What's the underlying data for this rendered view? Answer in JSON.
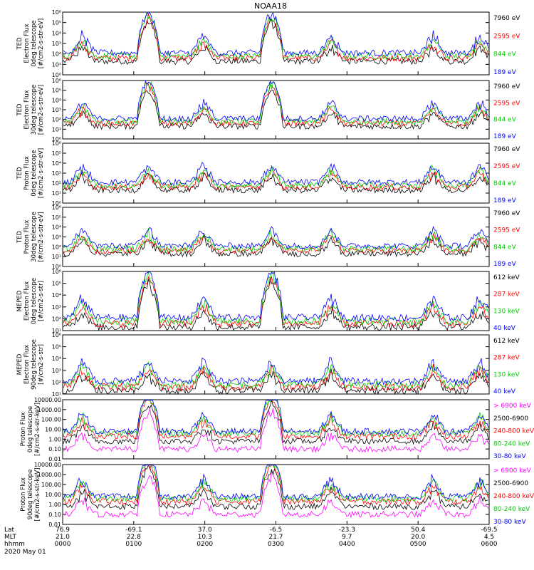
{
  "title": "NOAA18",
  "colors": {
    "blue": "#0000ff",
    "red": "#ff0000",
    "green": "#00cc00",
    "black": "#000000",
    "magenta": "#ff00ff"
  },
  "chart_data": [
    {
      "type": "line",
      "ylabel": [
        "TED",
        "Electron Flux",
        "0deg telescope",
        "[#/cm2-s-str-eV]"
      ],
      "yscale": "log",
      "ylim": [
        1,
        1000000
      ],
      "y_ticks": [
        "10^0",
        "10^1",
        "10^2",
        "10^3",
        "10^4",
        "10^5",
        "10^6"
      ],
      "series": [
        {
          "name": "7960 eV",
          "color": "#000000"
        },
        {
          "name": "2595 eV",
          "color": "#ff0000"
        },
        {
          "name": "844 eV",
          "color": "#00cc00"
        },
        {
          "name": "189 eV",
          "color": "#0000ff"
        }
      ]
    },
    {
      "type": "line",
      "ylabel": [
        "TED",
        "Electron Flux",
        "30deg telescope",
        "[#/cm2-s-str-eV]"
      ],
      "yscale": "log",
      "ylim": [
        1,
        1000000
      ],
      "y_ticks": [
        "10^0",
        "10^1",
        "10^2",
        "10^3",
        "10^4",
        "10^5",
        "10^6"
      ],
      "series": [
        {
          "name": "7960 eV",
          "color": "#000000"
        },
        {
          "name": "2595 eV",
          "color": "#ff0000"
        },
        {
          "name": "844 eV",
          "color": "#00cc00"
        },
        {
          "name": "189 eV",
          "color": "#0000ff"
        }
      ]
    },
    {
      "type": "line",
      "ylabel": [
        "TED",
        "Proton Flux",
        "0deg telescope",
        "[#/cm2-s-str-eV]"
      ],
      "yscale": "log",
      "ylim": [
        1,
        1000000
      ],
      "y_ticks": [
        "10^0",
        "10^1",
        "10^2",
        "10^3",
        "10^4",
        "10^5",
        "10^6"
      ],
      "series": [
        {
          "name": "7960 eV",
          "color": "#000000"
        },
        {
          "name": "2595 eV",
          "color": "#ff0000"
        },
        {
          "name": "844 eV",
          "color": "#00cc00"
        },
        {
          "name": "189 eV",
          "color": "#0000ff"
        }
      ]
    },
    {
      "type": "line",
      "ylabel": [
        "TED",
        "Proton Flux",
        "30deg telescope",
        "[#/cm2-s-str-eV]"
      ],
      "yscale": "log",
      "ylim": [
        1,
        1000000
      ],
      "y_ticks": [
        "10^0",
        "10^1",
        "10^2",
        "10^3",
        "10^4",
        "10^5",
        "10^6"
      ],
      "series": [
        {
          "name": "7960 eV",
          "color": "#000000"
        },
        {
          "name": "2595 eV",
          "color": "#ff0000"
        },
        {
          "name": "844 eV",
          "color": "#00cc00"
        },
        {
          "name": "189 eV",
          "color": "#0000ff"
        }
      ]
    },
    {
      "type": "line",
      "ylabel": [
        "MEPED",
        "Electron Flux",
        "0deg telescope",
        "[#/cm2-s-str]"
      ],
      "yscale": "log",
      "ylim": [
        10,
        1000000
      ],
      "y_ticks": [
        "10^1",
        "10^2",
        "10^3",
        "10^4",
        "10^5",
        "10^6"
      ],
      "series": [
        {
          "name": "612 keV",
          "color": "#000000"
        },
        {
          "name": "287 keV",
          "color": "#ff0000"
        },
        {
          "name": "130 keV",
          "color": "#00cc00"
        },
        {
          "name": "40 keV",
          "color": "#0000ff"
        }
      ]
    },
    {
      "type": "line",
      "ylabel": [
        "MEPED",
        "Electron Flux",
        "90deg telescope",
        "[#/cm2-s-str]"
      ],
      "yscale": "log",
      "ylim": [
        10,
        1000000
      ],
      "y_ticks": [
        "10^1",
        "10^2",
        "10^3",
        "10^4",
        "10^5",
        "10^6"
      ],
      "series": [
        {
          "name": "612 keV",
          "color": "#000000"
        },
        {
          "name": "287 keV",
          "color": "#ff0000"
        },
        {
          "name": "130 keV",
          "color": "#00cc00"
        },
        {
          "name": "40 keV",
          "color": "#0000ff"
        }
      ]
    },
    {
      "type": "line",
      "ylabel": [
        "Proton Flux",
        "0deg telescope",
        "[#/cm2-s-str-keV]"
      ],
      "yscale": "log",
      "ylim": [
        0.01,
        10000
      ],
      "y_ticks": [
        "10000.00",
        "1000.00",
        "100.00",
        "10.00",
        "1.00",
        "0.10",
        "0.01"
      ],
      "series": [
        {
          "name": "> 6900 keV",
          "color": "#ff00ff"
        },
        {
          "name": "2500-6900",
          "color": "#000000"
        },
        {
          "name": "240-800 keV",
          "color": "#ff0000"
        },
        {
          "name": "80-240 keV",
          "color": "#00cc00"
        },
        {
          "name": "30-80 keV",
          "color": "#0000ff"
        }
      ]
    },
    {
      "type": "line",
      "ylabel": [
        "Proton Flux",
        "90deg telescope",
        "[#/cm2-s-str-keV]"
      ],
      "yscale": "log",
      "ylim": [
        0.01,
        10000
      ],
      "y_ticks": [
        "10000.00",
        "1000.00",
        "100.00",
        "10.00",
        "1.00",
        "0.10",
        "0.01"
      ],
      "series": [
        {
          "name": "> 6900 keV",
          "color": "#ff00ff"
        },
        {
          "name": "2500-6900",
          "color": "#000000"
        },
        {
          "name": "240-800 keV",
          "color": "#ff0000"
        },
        {
          "name": "80-240 keV",
          "color": "#00cc00"
        },
        {
          "name": "30-80 keV",
          "color": "#0000ff"
        }
      ]
    }
  ],
  "x_axis": {
    "row_labels": [
      "Lat",
      "MLT",
      "hhmm",
      "2020 May 01"
    ],
    "ticks": [
      {
        "lat": "76.9",
        "mlt": "21.0",
        "hhmm": "0000"
      },
      {
        "lat": "-69.1",
        "mlt": "22.8",
        "hhmm": "0100"
      },
      {
        "lat": "37.0",
        "mlt": "10.3",
        "hhmm": "0200"
      },
      {
        "lat": "-6.5",
        "mlt": "21.7",
        "hhmm": "0300"
      },
      {
        "lat": "-23.3",
        "mlt": "9.7",
        "hhmm": "0400"
      },
      {
        "lat": "50.4",
        "mlt": "20.0",
        "hhmm": "0500"
      },
      {
        "lat": "-69.5",
        "mlt": "4.5",
        "hhmm": "0600"
      }
    ]
  }
}
